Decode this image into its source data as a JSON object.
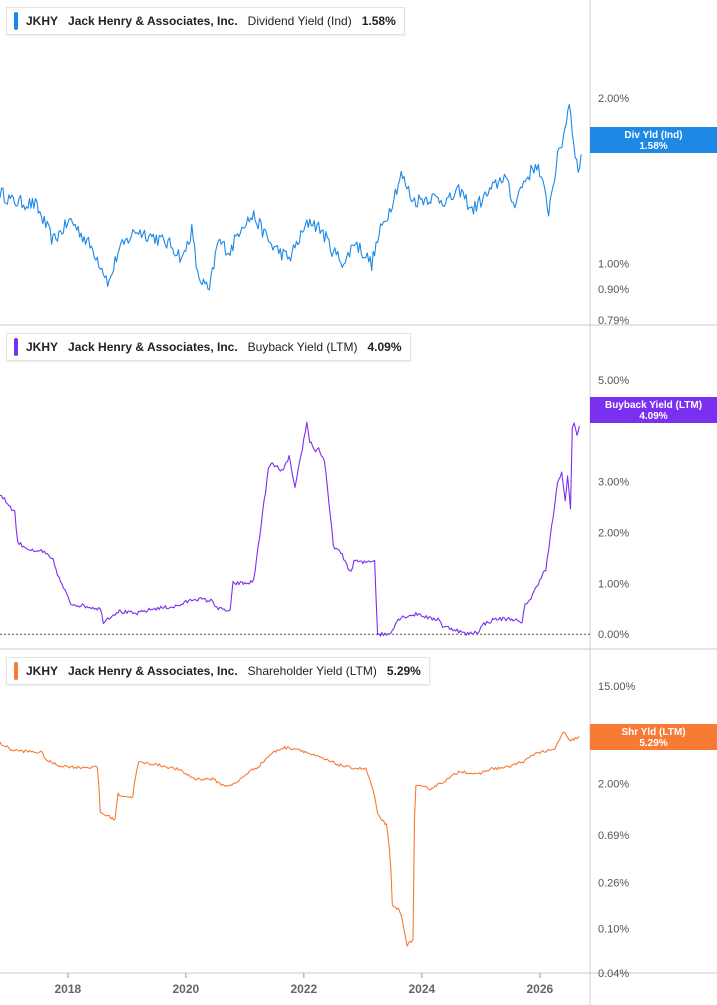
{
  "company": {
    "ticker": "JKHY",
    "name": "Jack Henry & Associates, Inc."
  },
  "x_axis": {
    "ticks": [
      "2018",
      "2020",
      "2022",
      "2024",
      "2026"
    ],
    "range": [
      2016.9,
      2026.9
    ]
  },
  "chart_data": [
    {
      "type": "line",
      "metric": "Dividend Yield (Ind)",
      "value_label": "1.58%",
      "badge": "Div Yld (Ind)",
      "color": "#1e88e5",
      "scale": "log",
      "yrange": [
        0.79,
        2.55
      ],
      "yticks": [
        {
          "label": "2.00%",
          "value": 2.0
        },
        {
          "label": "1.00%",
          "value": 1.0
        },
        {
          "label": "0.90%",
          "value": 0.9
        },
        {
          "label": "0.79%",
          "value": 0.79
        }
      ],
      "series": [
        {
          "x": [
            2016.9,
            2017.1,
            2017.5,
            2017.8,
            2018.1,
            2018.5,
            2018.75,
            2018.9,
            2019.2,
            2019.5,
            2019.8,
            2020.0,
            2020.15,
            2020.25,
            2020.45,
            2020.6,
            2020.8,
            2021.0,
            2021.2,
            2021.5,
            2021.8,
            2022.0,
            2022.15,
            2022.35,
            2022.55,
            2022.75,
            2022.9,
            2023.05,
            2023.2,
            2023.35,
            2023.5,
            2023.7,
            2023.9,
            2024.2,
            2024.5,
            2024.7,
            2024.9,
            2025.2,
            2025.45,
            2025.6,
            2025.8,
            2026.0,
            2026.2,
            2026.35,
            2026.45,
            2026.55,
            2026.6,
            2026.7,
            2026.75
          ],
          "y": [
            1.35,
            1.3,
            1.28,
            1.1,
            1.2,
            1.05,
            0.92,
            1.05,
            1.15,
            1.12,
            1.08,
            1.02,
            1.15,
            0.95,
            0.89,
            1.1,
            1.05,
            1.18,
            1.22,
            1.08,
            1.02,
            1.12,
            1.2,
            1.15,
            1.05,
            1.0,
            1.1,
            1.05,
            1.0,
            1.15,
            1.25,
            1.45,
            1.3,
            1.32,
            1.3,
            1.36,
            1.25,
            1.35,
            1.45,
            1.28,
            1.42,
            1.52,
            1.25,
            1.55,
            1.7,
            1.97,
            1.75,
            1.45,
            1.58
          ]
        }
      ]
    },
    {
      "type": "line",
      "metric": "Buyback Yield (LTM)",
      "value_label": "4.09%",
      "badge": "Buyback Yield (LTM)",
      "color": "#7b2ff0",
      "scale": "linear",
      "yrange": [
        -0.35,
        5.35
      ],
      "zero_line": true,
      "yticks": [
        {
          "label": "5.00%",
          "value": 5.0
        },
        {
          "label": "3.00%",
          "value": 3.0
        },
        {
          "label": "2.00%",
          "value": 2.0
        },
        {
          "label": "1.00%",
          "value": 1.0
        },
        {
          "label": "0.00%",
          "value": 0.0
        }
      ],
      "series": [
        {
          "x": [
            2016.9,
            2017.15,
            2017.2,
            2017.5,
            2017.6,
            2017.8,
            2017.9,
            2018.1,
            2018.6,
            2018.65,
            2018.9,
            2019.2,
            2019.5,
            2019.9,
            2020.2,
            2020.5,
            2020.6,
            2020.8,
            2020.85,
            2021.1,
            2021.2,
            2021.45,
            2021.5,
            2021.7,
            2021.8,
            2021.9,
            2022.1,
            2022.15,
            2022.25,
            2022.3,
            2022.4,
            2022.55,
            2022.7,
            2022.85,
            2022.9,
            2023.05,
            2023.2,
            2023.25,
            2023.3,
            2023.5,
            2023.65,
            2023.75,
            2024.0,
            2024.2,
            2024.35,
            2024.4,
            2024.6,
            2024.8,
            2025.0,
            2025.1,
            2025.3,
            2025.6,
            2025.75,
            2025.8,
            2025.9,
            2026.1,
            2026.15,
            2026.35,
            2026.42,
            2026.48,
            2026.52,
            2026.57,
            2026.6,
            2026.63,
            2026.68,
            2026.72
          ],
          "y": [
            2.75,
            2.4,
            1.8,
            1.6,
            1.65,
            1.45,
            1.1,
            0.6,
            0.5,
            0.25,
            0.45,
            0.4,
            0.5,
            0.55,
            0.7,
            0.65,
            0.5,
            0.45,
            1.0,
            1.0,
            1.05,
            3.25,
            3.35,
            3.2,
            3.5,
            2.85,
            4.15,
            3.8,
            3.6,
            3.65,
            3.4,
            1.75,
            1.55,
            1.2,
            1.45,
            1.4,
            1.45,
            1.45,
            0.0,
            0.0,
            0.3,
            0.35,
            0.4,
            0.3,
            0.3,
            0.15,
            0.1,
            0.0,
            0.05,
            0.2,
            0.3,
            0.3,
            0.2,
            0.6,
            0.7,
            1.2,
            1.25,
            2.95,
            3.2,
            2.6,
            3.1,
            2.5,
            4.05,
            4.15,
            3.9,
            4.09
          ]
        }
      ]
    },
    {
      "type": "line",
      "metric": "Shareholder Yield (LTM)",
      "value_label": "5.29%",
      "badge": "Shr Yld (LTM)",
      "color": "#f77b35",
      "scale": "log",
      "yrange": [
        0.04,
        15.0
      ],
      "yticks": [
        {
          "label": "15.00%",
          "value": 15.0
        },
        {
          "label": "5.29%",
          "value": 5.29
        },
        {
          "label": "2.00%",
          "value": 2.0
        },
        {
          "label": "0.69%",
          "value": 0.69
        },
        {
          "label": "0.26%",
          "value": 0.26
        },
        {
          "label": "0.10%",
          "value": 0.1
        },
        {
          "label": "0.04%",
          "value": 0.04
        }
      ],
      "series": [
        {
          "x": [
            2016.9,
            2017.1,
            2017.3,
            2017.6,
            2017.7,
            2017.9,
            2018.2,
            2018.55,
            2018.6,
            2018.85,
            2018.9,
            2019.1,
            2019.15,
            2019.25,
            2019.5,
            2019.9,
            2020.2,
            2020.5,
            2020.7,
            2020.9,
            2021.1,
            2021.3,
            2021.5,
            2021.7,
            2021.95,
            2022.2,
            2022.4,
            2022.6,
            2022.8,
            2023.1,
            2023.25,
            2023.3,
            2023.45,
            2023.55,
            2023.65,
            2023.7,
            2023.8,
            2023.9,
            2023.95,
            2024.2,
            2024.35,
            2024.5,
            2024.7,
            2025.0,
            2025.2,
            2025.5,
            2025.8,
            2026.0,
            2026.3,
            2026.45,
            2026.55,
            2026.7,
            2026.72
          ],
          "y": [
            4.6,
            4.0,
            3.9,
            3.8,
            3.2,
            2.9,
            2.8,
            2.8,
            1.1,
            0.95,
            1.6,
            1.5,
            1.55,
            3.1,
            3.0,
            2.7,
            2.2,
            2.2,
            1.9,
            2.0,
            2.5,
            2.9,
            3.7,
            4.2,
            4.1,
            3.6,
            3.3,
            3.0,
            2.8,
            2.7,
            1.5,
            1.05,
            0.85,
            0.16,
            0.15,
            0.13,
            0.07,
            0.08,
            1.9,
            1.8,
            2.0,
            2.2,
            2.6,
            2.4,
            2.7,
            2.8,
            3.2,
            3.8,
            4.0,
            5.8,
            4.8,
            5.2,
            5.29
          ]
        }
      ]
    }
  ]
}
